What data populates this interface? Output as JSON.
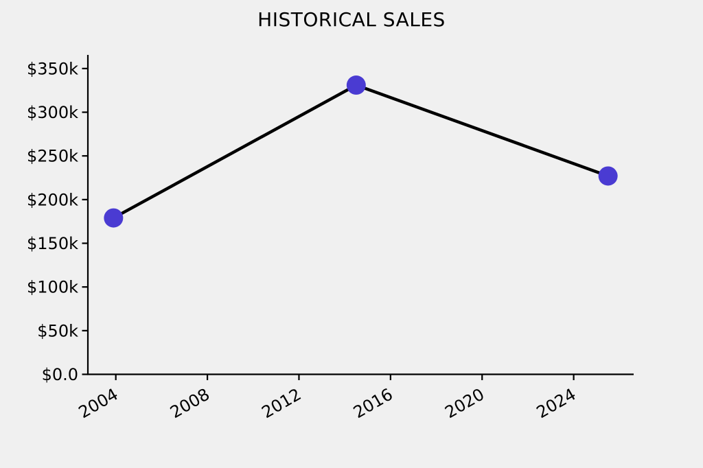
{
  "chart_data": {
    "type": "line",
    "title": "HISTORICAL SALES",
    "series": [
      {
        "name": "historical-sales",
        "points": [
          {
            "x": 2003.9,
            "y": 179000
          },
          {
            "x": 2014.5,
            "y": 331000
          },
          {
            "x": 2025.5,
            "y": 227000
          }
        ]
      }
    ],
    "x_ticks": [
      {
        "value": 2004,
        "label": "2004"
      },
      {
        "value": 2008,
        "label": "2008"
      },
      {
        "value": 2012,
        "label": "2012"
      },
      {
        "value": 2016,
        "label": "2016"
      },
      {
        "value": 2020,
        "label": "2020"
      },
      {
        "value": 2024,
        "label": "2024"
      }
    ],
    "y_ticks": [
      {
        "value": 0,
        "label": "$0.0"
      },
      {
        "value": 50000,
        "label": "$50k"
      },
      {
        "value": 100000,
        "label": "$100k"
      },
      {
        "value": 150000,
        "label": "$150k"
      },
      {
        "value": 200000,
        "label": "$200k"
      },
      {
        "value": 250000,
        "label": "$250k"
      },
      {
        "value": 300000,
        "label": "$300k"
      },
      {
        "value": 350000,
        "label": "$350k"
      }
    ],
    "xlim": [
      2002.78,
      2026.62
    ],
    "ylim": [
      0,
      365600
    ],
    "grid": false,
    "legend": "none",
    "x_label_rotation_deg": -30,
    "styles": {
      "background": "#f0f0f0",
      "line_color": "#000000",
      "marker_color": "#4a3bd2",
      "axis_color": "#000000",
      "text_color": "#000000",
      "line_width": 4.5,
      "marker_radius": 14,
      "tick_font_size": 24,
      "title_font_size": 28
    }
  }
}
